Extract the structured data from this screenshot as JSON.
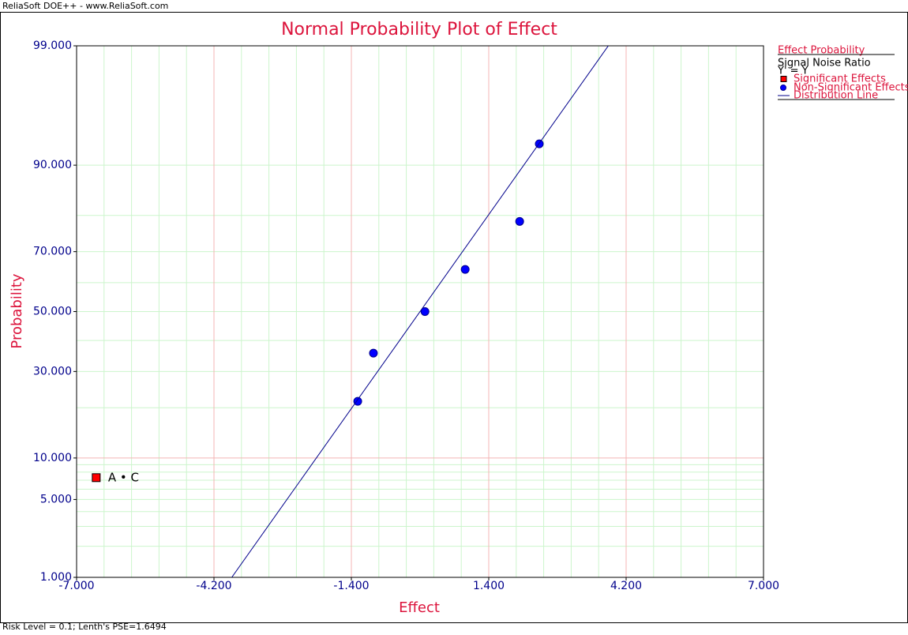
{
  "app_header": "ReliaSoft DOE++ - www.ReliaSoft.com",
  "status_bar": "Risk Level = 0.1; Lenth's PSE=1.6494",
  "chart_data": {
    "type": "normal_probability",
    "title": "Normal Probability Plot of Effect",
    "x_label": "Effect",
    "y_label": "Probability",
    "xlim": [
      -7,
      7
    ],
    "xticks": [
      {
        "value": -7,
        "label": "-7.000"
      },
      {
        "value": -4.2,
        "label": "-4.200"
      },
      {
        "value": -1.4,
        "label": "-1.400"
      },
      {
        "value": 1.4,
        "label": "1.400"
      },
      {
        "value": 4.2,
        "label": "4.200"
      },
      {
        "value": 7,
        "label": "7.000"
      }
    ],
    "x_minor_divisions": 5,
    "ylim": [
      1,
      99
    ],
    "yticks": [
      {
        "value": 1,
        "label": "1.000"
      },
      {
        "value": 5,
        "label": "5.000"
      },
      {
        "value": 10,
        "label": "10.000"
      },
      {
        "value": 30,
        "label": "30.000"
      },
      {
        "value": 50,
        "label": "50.000"
      },
      {
        "value": 70,
        "label": "70.000"
      },
      {
        "value": 90,
        "label": "90.000"
      },
      {
        "value": 99,
        "label": "99.000"
      }
    ],
    "y_minor_grid": [
      2,
      3,
      4,
      5,
      6,
      7,
      8,
      9,
      20,
      30,
      40,
      50,
      60,
      70,
      80,
      90
    ],
    "legend": {
      "title": "Effect Probability",
      "subtitle": "Signal Noise Ratio",
      "note": "Y' = Y"
    },
    "series": [
      {
        "name": "Significant Effects",
        "color": "#ff0000",
        "marker": "square",
        "x": [
          -6.6
        ],
        "values": [
          7.3
        ],
        "point_labels": [
          "A • C"
        ]
      },
      {
        "name": "Non-Significant Effects",
        "color": "#0000ff",
        "marker": "circle",
        "x": [
          -1.27,
          -0.95,
          0.1,
          0.92,
          2.03,
          2.43
        ],
        "values": [
          21.6,
          35.8,
          50,
          64.4,
          78.5,
          92.9
        ]
      },
      {
        "name": "Distribution Line",
        "color": "#00008b",
        "marker": "line",
        "x": [
          -3.837,
          3.837
        ],
        "values": [
          1,
          99
        ]
      }
    ]
  }
}
